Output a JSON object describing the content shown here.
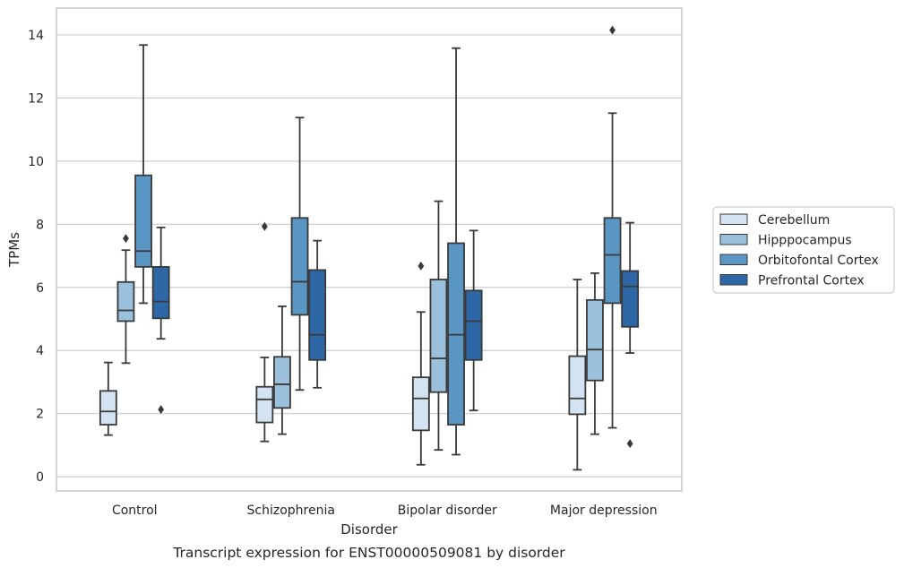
{
  "chart_data": {
    "type": "box",
    "caption": "Transcript expression for ENST00000509081 by disorder",
    "xlabel": "Disorder",
    "ylabel": "TPMs",
    "ylim": [
      -0.45,
      14.85
    ],
    "yticks": [
      0,
      2,
      4,
      6,
      8,
      10,
      12,
      14
    ],
    "grid": "horizontal",
    "legend_position": "right",
    "categories": [
      "Control",
      "Schizophrenia",
      "Bipolar disorder",
      "Major depression"
    ],
    "series": [
      {
        "name": "Cerebellum",
        "color": "#d4e3f2",
        "boxes": [
          {
            "whisker_low": 1.32,
            "q1": 1.65,
            "median": 2.07,
            "q3": 2.72,
            "whisker_high": 3.62,
            "outliers": []
          },
          {
            "whisker_low": 1.12,
            "q1": 1.72,
            "median": 2.45,
            "q3": 2.85,
            "whisker_high": 3.78,
            "outliers": [
              7.93
            ]
          },
          {
            "whisker_low": 0.38,
            "q1": 1.47,
            "median": 2.48,
            "q3": 3.15,
            "whisker_high": 5.22,
            "outliers": [
              6.68
            ]
          },
          {
            "whisker_low": 0.22,
            "q1": 1.98,
            "median": 2.48,
            "q3": 3.82,
            "whisker_high": 6.25,
            "outliers": []
          }
        ]
      },
      {
        "name": "Hipppocampus",
        "color": "#9bc0db",
        "boxes": [
          {
            "whisker_low": 3.6,
            "q1": 4.93,
            "median": 5.27,
            "q3": 6.17,
            "whisker_high": 7.18,
            "outliers": [
              7.55
            ]
          },
          {
            "whisker_low": 1.35,
            "q1": 2.18,
            "median": 2.93,
            "q3": 3.8,
            "whisker_high": 5.4,
            "outliers": []
          },
          {
            "whisker_low": 0.85,
            "q1": 2.68,
            "median": 3.75,
            "q3": 6.25,
            "whisker_high": 8.73,
            "outliers": []
          },
          {
            "whisker_low": 1.35,
            "q1": 3.05,
            "median": 4.03,
            "q3": 5.6,
            "whisker_high": 6.45,
            "outliers": []
          }
        ]
      },
      {
        "name": "Orbitofontal Cortex",
        "color": "#5a96c4",
        "boxes": [
          {
            "whisker_low": 5.5,
            "q1": 6.65,
            "median": 7.15,
            "q3": 9.55,
            "whisker_high": 13.68,
            "outliers": []
          },
          {
            "whisker_low": 2.75,
            "q1": 5.13,
            "median": 6.18,
            "q3": 8.2,
            "whisker_high": 11.38,
            "outliers": []
          },
          {
            "whisker_low": 0.7,
            "q1": 1.65,
            "median": 4.5,
            "q3": 7.4,
            "whisker_high": 13.58,
            "outliers": []
          },
          {
            "whisker_low": 1.55,
            "q1": 5.5,
            "median": 7.03,
            "q3": 8.2,
            "whisker_high": 11.52,
            "outliers": [
              14.15
            ]
          }
        ]
      },
      {
        "name": "Prefrontal Cortex",
        "color": "#2d67a6",
        "boxes": [
          {
            "whisker_low": 4.37,
            "q1": 5.02,
            "median": 5.55,
            "q3": 6.65,
            "whisker_high": 7.9,
            "outliers": [
              2.13
            ]
          },
          {
            "whisker_low": 2.82,
            "q1": 3.7,
            "median": 4.5,
            "q3": 6.55,
            "whisker_high": 7.48,
            "outliers": []
          },
          {
            "whisker_low": 2.1,
            "q1": 3.7,
            "median": 4.93,
            "q3": 5.9,
            "whisker_high": 7.8,
            "outliers": []
          },
          {
            "whisker_low": 3.92,
            "q1": 4.75,
            "median": 6.03,
            "q3": 6.52,
            "whisker_high": 8.05,
            "outliers": [
              1.05
            ]
          }
        ]
      }
    ]
  }
}
